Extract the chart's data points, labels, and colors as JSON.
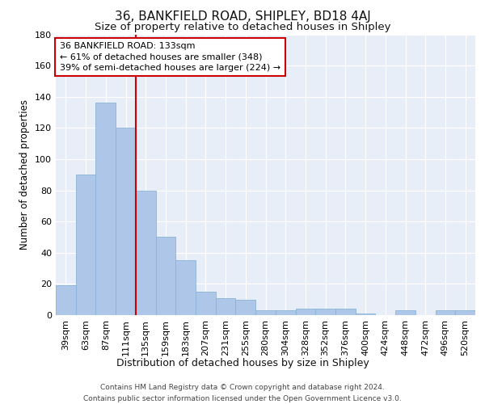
{
  "title": "36, BANKFIELD ROAD, SHIPLEY, BD18 4AJ",
  "subtitle": "Size of property relative to detached houses in Shipley",
  "xlabel": "Distribution of detached houses by size in Shipley",
  "ylabel": "Number of detached properties",
  "categories": [
    "39sqm",
    "63sqm",
    "87sqm",
    "111sqm",
    "135sqm",
    "159sqm",
    "183sqm",
    "207sqm",
    "231sqm",
    "255sqm",
    "280sqm",
    "304sqm",
    "328sqm",
    "352sqm",
    "376sqm",
    "400sqm",
    "424sqm",
    "448sqm",
    "472sqm",
    "496sqm",
    "520sqm"
  ],
  "values": [
    19,
    90,
    136,
    120,
    80,
    50,
    35,
    15,
    11,
    10,
    3,
    3,
    4,
    4,
    4,
    1,
    0,
    3,
    0,
    3,
    3
  ],
  "bar_color": "#aec6e8",
  "bar_edge_color": "#8ab4d8",
  "vline_x": 3.5,
  "vline_color": "#cc0000",
  "annotation_text": "36 BANKFIELD ROAD: 133sqm\n← 61% of detached houses are smaller (348)\n39% of semi-detached houses are larger (224) →",
  "annotation_box_color": "#ffffff",
  "annotation_box_edge_color": "#cc0000",
  "ylim": [
    0,
    180
  ],
  "yticks": [
    0,
    20,
    40,
    60,
    80,
    100,
    120,
    140,
    160,
    180
  ],
  "background_color": "#e8eef8",
  "footer_text": "Contains HM Land Registry data © Crown copyright and database right 2024.\nContains public sector information licensed under the Open Government Licence v3.0.",
  "title_fontsize": 11,
  "subtitle_fontsize": 9.5,
  "xlabel_fontsize": 9,
  "ylabel_fontsize": 8.5,
  "tick_fontsize": 8,
  "annotation_fontsize": 8,
  "footer_fontsize": 6.5
}
